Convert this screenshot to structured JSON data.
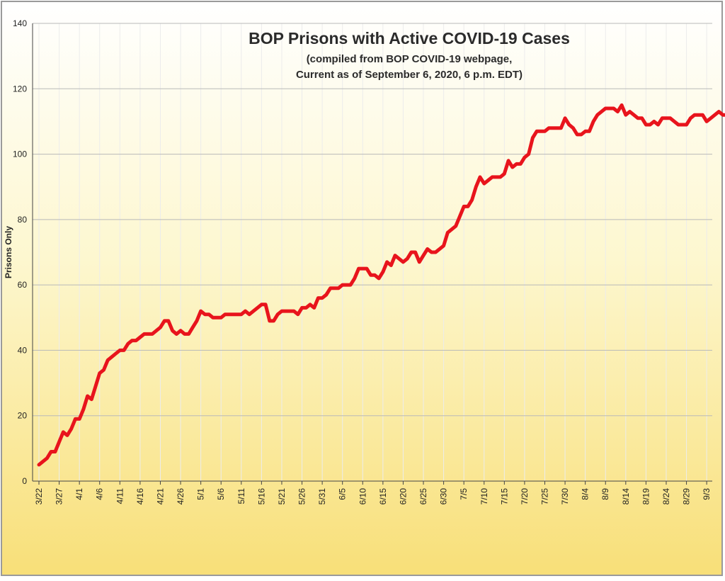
{
  "chart_data": {
    "type": "line",
    "title": "BOP Prisons with Active COVID-19 Cases",
    "subtitle_lines": [
      "(compiled from BOP COVID-19 webpage,",
      "Current as of September 6, 2020, 6 p.m. EDT)"
    ],
    "xlabel": "",
    "ylabel": "Prisons Only",
    "ylim": [
      0,
      140
    ],
    "yticks": [
      0,
      20,
      40,
      60,
      80,
      100,
      120,
      140
    ],
    "grid": true,
    "legend": "none",
    "line_color": "#e8141c",
    "start_date": "2020-03-22",
    "xticks": [
      "3/22",
      "3/27",
      "4/1",
      "4/6",
      "4/11",
      "4/16",
      "4/21",
      "4/26",
      "5/1",
      "5/6",
      "5/11",
      "5/16",
      "5/21",
      "5/26",
      "5/31",
      "6/5",
      "6/10",
      "6/15",
      "6/20",
      "6/25",
      "6/30",
      "7/5",
      "7/10",
      "7/15",
      "7/20",
      "7/25",
      "7/30",
      "8/4",
      "8/9",
      "8/14",
      "8/19",
      "8/24",
      "8/29",
      "9/3"
    ],
    "values": [
      5,
      6,
      7,
      9,
      9,
      12,
      15,
      14,
      16,
      19,
      19,
      22,
      26,
      25,
      29,
      33,
      34,
      37,
      38,
      39,
      40,
      40,
      42,
      43,
      43,
      44,
      45,
      45,
      45,
      46,
      47,
      49,
      49,
      46,
      45,
      46,
      45,
      45,
      47,
      49,
      52,
      51,
      51,
      50,
      50,
      50,
      51,
      51,
      51,
      51,
      51,
      52,
      51,
      52,
      53,
      54,
      54,
      49,
      49,
      51,
      52,
      52,
      52,
      52,
      51,
      53,
      53,
      54,
      53,
      56,
      56,
      57,
      59,
      59,
      59,
      60,
      60,
      60,
      62,
      65,
      65,
      65,
      63,
      63,
      62,
      64,
      67,
      66,
      69,
      68,
      67,
      68,
      70,
      70,
      67,
      69,
      71,
      70,
      70,
      71,
      72,
      76,
      77,
      78,
      81,
      84,
      84,
      86,
      90,
      93,
      91,
      92,
      93,
      93,
      93,
      94,
      98,
      96,
      97,
      97,
      99,
      100,
      105,
      107,
      107,
      107,
      108,
      108,
      108,
      108,
      111,
      109,
      108,
      106,
      106,
      107,
      107,
      110,
      112,
      113,
      114,
      114,
      114,
      113,
      115,
      112,
      113,
      112,
      111,
      111,
      109,
      109,
      110,
      109,
      111,
      111,
      111,
      110,
      109,
      109,
      109,
      111,
      112,
      112,
      112,
      110,
      111,
      112,
      113,
      112,
      112
    ]
  }
}
